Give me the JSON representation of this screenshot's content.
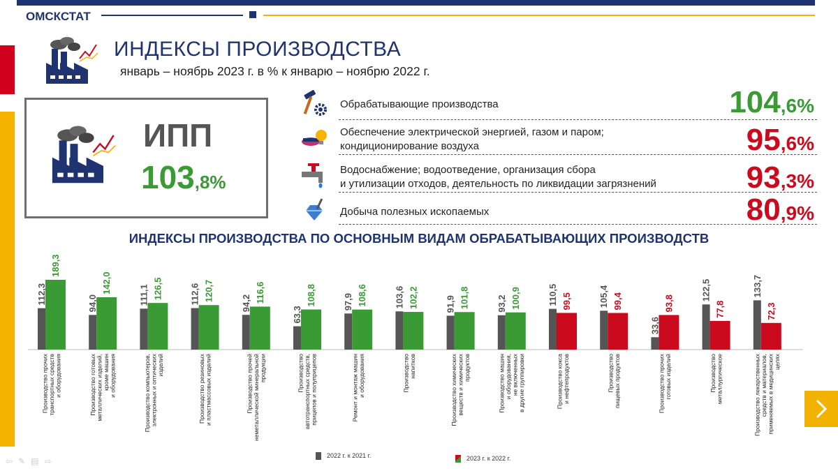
{
  "header": {
    "brand": "ОМСКСТАТ",
    "title": "ИНДЕКСЫ ПРОИЗВОДСТВА",
    "subtitle": "январь – ноябрь 2023 г. в % к  январю – ноябрю 2022 г."
  },
  "ipp": {
    "label": "ИПП",
    "value_int": "103",
    "value_dec": ",8%"
  },
  "indicators": [
    {
      "label": "Обрабатывающие производства",
      "value_int": "104",
      "value_dec": ",6%",
      "color": "#3a9b35",
      "icon": "hammer-gear-icon"
    },
    {
      "label": "Обеспечение электрической энергией, газом и паром;\nкондиционирование воздуха",
      "value_int": "95",
      "value_dec": ",6%",
      "color": "#cc0a1e",
      "icon": "energy-bulb-icon"
    },
    {
      "label": "Водоснабжение; водоотведение, организация сбора\nи утилизации отходов, деятельность по ликвидации загрязнений",
      "value_int": "93",
      "value_dec": ",3%",
      "color": "#cc0a1e",
      "icon": "water-tap-icon"
    },
    {
      "label": "Добыча полезных  ископаемых",
      "value_int": "80",
      "value_dec": ",9%",
      "color": "#cc0a1e",
      "icon": "diamond-shovel-icon"
    }
  ],
  "chart_title": "ИНДЕКСЫ ПРОИЗВОДСТВА ПО ОСНОВНЫМ ВИДАМ ОБРАБАТЫВАЮЩИХ ПРОИЗВОДСТВ",
  "chart_data": {
    "type": "bar",
    "categories": [
      "Производство прочих\nтранспортных средств\nи оборудования",
      "Производство готовых\nметаллических изделий,\nкроме машин\nи оборудования",
      "Производство компьютеров,\nэлектронных и оптических\nизделий",
      "Производство резиновых\nи пластмассовых изделий",
      "Производство прочей\nнеметаллической минеральной\nпродукции",
      "Производство\nавтотранспортных средств,\nприцепов и полуприцепов",
      "Ремонт и монтаж машин\nи оборудования",
      "Производство\nнапитков",
      "Производство химических\nвеществ и химических\nпродуктов",
      "Производство машин\nи оборудования,\nне включенных\nв другие группировки",
      "Производство кокса\nи нефтепродуктов",
      "Производство\nпищевых продуктов",
      "Производство прочих\nготовых изделий",
      "Производство\nметаллургическое",
      "Производство лекарственных\nсредств и материалов,\nприменяемых в медицинских\nцелях"
    ],
    "series": [
      {
        "name": "2022 г. к 2021 г.",
        "color": "#555555",
        "values": [
          112.3,
          94.0,
          111.1,
          112.6,
          94.2,
          63.3,
          97.9,
          103.6,
          91.9,
          93.2,
          110.5,
          105.4,
          33.6,
          122.5,
          133.7
        ],
        "labels": [
          "112,3",
          "94,0",
          "111,1",
          "112,6",
          "94,2",
          "63,3",
          "97,9",
          "103,6",
          "91,9",
          "93,2",
          "110,5",
          "105,4",
          "33,6",
          "122,5",
          "133,7"
        ]
      },
      {
        "name": "2023 г. к 2022 г.",
        "color_up": "#3a9b35",
        "color_down": "#cc0a1e",
        "values": [
          189.3,
          142.0,
          126.5,
          120.7,
          116.6,
          108.8,
          108.6,
          102.2,
          101.8,
          100.9,
          99.5,
          99.4,
          93.8,
          77.8,
          72.3
        ],
        "labels": [
          "189,3",
          "142,0",
          "126,5",
          "120,7",
          "116,6",
          "108,8",
          "108,6",
          "102,2",
          "101,8",
          "100,9",
          "99,5",
          "99,4",
          "93,8",
          "77,8",
          "72,3"
        ]
      }
    ],
    "ylim": [
      0,
      260
    ],
    "grid": false,
    "legend_position": "bottom"
  },
  "legend": {
    "series1": "2022  г.  к  2021  г.",
    "series2": "2023  г.  к  2022  г."
  }
}
